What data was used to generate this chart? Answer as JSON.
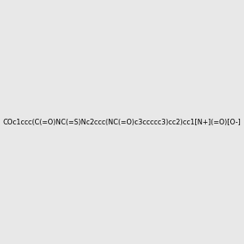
{
  "smiles": "COc1ccc(C(=O)NC(=S)Nc2ccc(NC(=O)c3ccccc3)cc2)cc1[N+](=O)[O-]",
  "title": "",
  "bg_color": "#e8e8e8",
  "img_size": [
    300,
    300
  ]
}
